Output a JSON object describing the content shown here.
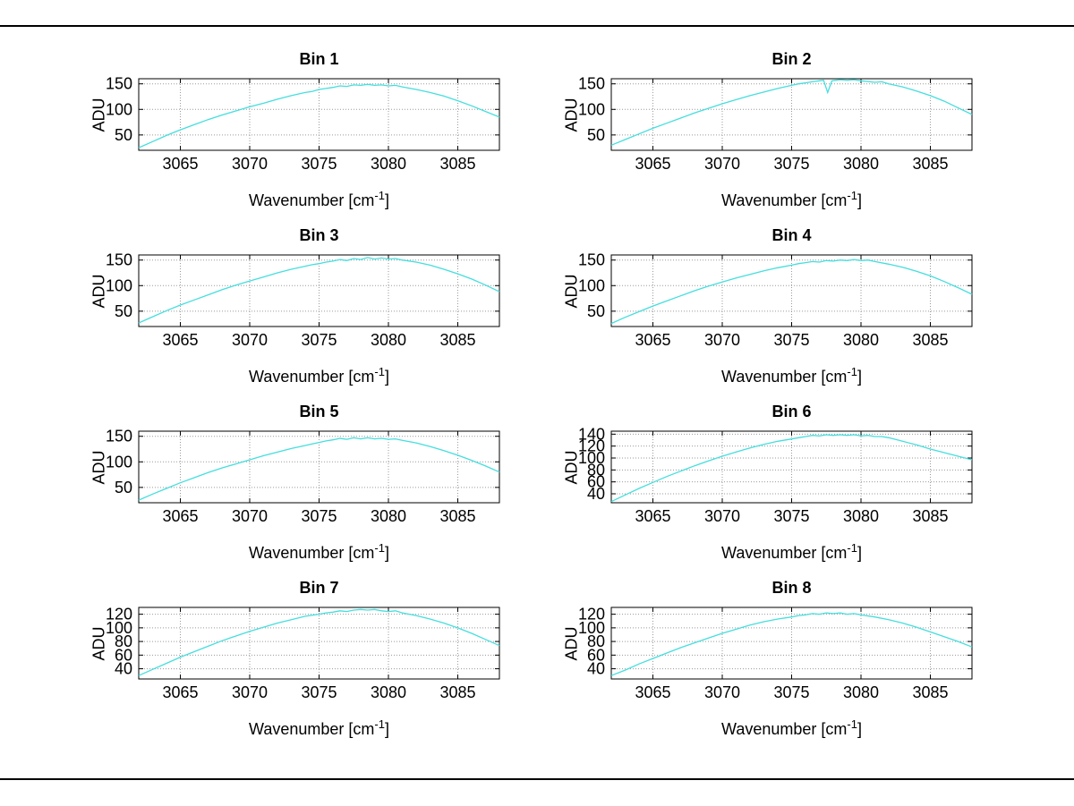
{
  "figure": {
    "background": "#ffffff",
    "border_color": "#000000"
  },
  "axes_labels": {
    "ylabel": "ADU",
    "xlabel_main": "Wavenumber [cm",
    "xlabel_sup": "-1",
    "xlabel_close": "]"
  },
  "chart_data": [
    {
      "type": "line",
      "title": "Bin 1",
      "xlabel": "Wavenumber [cm^-1]",
      "ylabel": "ADU",
      "xlim": [
        3062,
        3088
      ],
      "ylim": [
        20,
        160
      ],
      "xticks": [
        3065,
        3070,
        3075,
        3080,
        3085
      ],
      "yticks": [
        50,
        100,
        150
      ],
      "grid": true,
      "line_color": "#45dede",
      "points": [
        [
          3062,
          25
        ],
        [
          3063,
          37
        ],
        [
          3064,
          49
        ],
        [
          3065,
          60
        ],
        [
          3066,
          70
        ],
        [
          3067,
          80
        ],
        [
          3068,
          89
        ],
        [
          3069,
          97
        ],
        [
          3070,
          105
        ],
        [
          3071,
          112
        ],
        [
          3072,
          120
        ],
        [
          3073,
          127
        ],
        [
          3074,
          133
        ],
        [
          3074.5,
          135
        ],
        [
          3075,
          139
        ],
        [
          3075.5,
          141
        ],
        [
          3076,
          143
        ],
        [
          3076.5,
          146
        ],
        [
          3077,
          145
        ],
        [
          3077.5,
          148
        ],
        [
          3078,
          147
        ],
        [
          3078.5,
          149
        ],
        [
          3079,
          147
        ],
        [
          3079.5,
          148
        ],
        [
          3080,
          146
        ],
        [
          3080.5,
          147
        ],
        [
          3081,
          144
        ],
        [
          3082,
          139
        ],
        [
          3083,
          133
        ],
        [
          3084,
          126
        ],
        [
          3085,
          117
        ],
        [
          3086,
          107
        ],
        [
          3087,
          96
        ],
        [
          3088,
          85
        ]
      ]
    },
    {
      "type": "line",
      "title": "Bin 2",
      "xlabel": "Wavenumber [cm^-1]",
      "ylabel": "ADU",
      "xlim": [
        3062,
        3088
      ],
      "ylim": [
        20,
        160
      ],
      "xticks": [
        3065,
        3070,
        3075,
        3080,
        3085
      ],
      "yticks": [
        50,
        100,
        150
      ],
      "grid": true,
      "line_color": "#45dede",
      "points": [
        [
          3062,
          30
        ],
        [
          3063,
          41
        ],
        [
          3064,
          52
        ],
        [
          3065,
          63
        ],
        [
          3066,
          73
        ],
        [
          3067,
          83
        ],
        [
          3068,
          93
        ],
        [
          3069,
          102
        ],
        [
          3070,
          111
        ],
        [
          3071,
          119
        ],
        [
          3072,
          127
        ],
        [
          3073,
          134
        ],
        [
          3074,
          141
        ],
        [
          3075,
          147
        ],
        [
          3075.5,
          150
        ],
        [
          3076,
          152
        ],
        [
          3076.5,
          154
        ],
        [
          3077,
          156
        ],
        [
          3077.3,
          157
        ],
        [
          3077.6,
          133
        ],
        [
          3077.9,
          156
        ],
        [
          3078.2,
          157
        ],
        [
          3078.5,
          158
        ],
        [
          3079,
          157
        ],
        [
          3079.5,
          158
        ],
        [
          3080,
          156
        ],
        [
          3081,
          153
        ],
        [
          3081.5,
          154
        ],
        [
          3082,
          150
        ],
        [
          3083,
          144
        ],
        [
          3084,
          136
        ],
        [
          3085,
          127
        ],
        [
          3086,
          116
        ],
        [
          3087,
          103
        ],
        [
          3088,
          90
        ]
      ]
    },
    {
      "type": "line",
      "title": "Bin 3",
      "xlabel": "Wavenumber [cm^-1]",
      "ylabel": "ADU",
      "xlim": [
        3062,
        3088
      ],
      "ylim": [
        20,
        160
      ],
      "xticks": [
        3065,
        3070,
        3075,
        3080,
        3085
      ],
      "yticks": [
        50,
        100,
        150
      ],
      "grid": true,
      "line_color": "#45dede",
      "points": [
        [
          3062,
          27
        ],
        [
          3063,
          39
        ],
        [
          3064,
          51
        ],
        [
          3065,
          62
        ],
        [
          3066,
          72
        ],
        [
          3067,
          82
        ],
        [
          3068,
          92
        ],
        [
          3069,
          101
        ],
        [
          3070,
          109
        ],
        [
          3071,
          117
        ],
        [
          3072,
          125
        ],
        [
          3073,
          132
        ],
        [
          3074,
          138
        ],
        [
          3074.5,
          141
        ],
        [
          3075,
          143
        ],
        [
          3075.5,
          146
        ],
        [
          3076,
          148
        ],
        [
          3076.5,
          151
        ],
        [
          3077,
          149
        ],
        [
          3077.5,
          153
        ],
        [
          3078,
          151
        ],
        [
          3078.5,
          155
        ],
        [
          3079,
          152
        ],
        [
          3079.5,
          154
        ],
        [
          3080,
          152
        ],
        [
          3080.5,
          153
        ],
        [
          3081,
          150
        ],
        [
          3082,
          146
        ],
        [
          3083,
          140
        ],
        [
          3084,
          132
        ],
        [
          3085,
          123
        ],
        [
          3086,
          113
        ],
        [
          3087,
          101
        ],
        [
          3088,
          88
        ]
      ]
    },
    {
      "type": "line",
      "title": "Bin 4",
      "xlabel": "Wavenumber [cm^-1]",
      "ylabel": "ADU",
      "xlim": [
        3062,
        3088
      ],
      "ylim": [
        20,
        160
      ],
      "xticks": [
        3065,
        3070,
        3075,
        3080,
        3085
      ],
      "yticks": [
        50,
        100,
        150
      ],
      "grid": true,
      "line_color": "#45dede",
      "points": [
        [
          3062,
          26
        ],
        [
          3063,
          38
        ],
        [
          3064,
          49
        ],
        [
          3065,
          60
        ],
        [
          3066,
          70
        ],
        [
          3067,
          80
        ],
        [
          3068,
          90
        ],
        [
          3069,
          99
        ],
        [
          3070,
          107
        ],
        [
          3071,
          115
        ],
        [
          3072,
          122
        ],
        [
          3073,
          129
        ],
        [
          3074,
          135
        ],
        [
          3075,
          140
        ],
        [
          3075.5,
          143
        ],
        [
          3076,
          145
        ],
        [
          3076.5,
          147
        ],
        [
          3077,
          146
        ],
        [
          3077.5,
          149
        ],
        [
          3078,
          148
        ],
        [
          3078.5,
          150
        ],
        [
          3079,
          149
        ],
        [
          3079.5,
          151
        ],
        [
          3080,
          149
        ],
        [
          3080.5,
          150
        ],
        [
          3081,
          147
        ],
        [
          3082,
          142
        ],
        [
          3083,
          136
        ],
        [
          3084,
          128
        ],
        [
          3085,
          119
        ],
        [
          3086,
          108
        ],
        [
          3087,
          96
        ],
        [
          3088,
          83
        ]
      ]
    },
    {
      "type": "line",
      "title": "Bin 5",
      "xlabel": "Wavenumber [cm^-1]",
      "ylabel": "ADU",
      "xlim": [
        3062,
        3088
      ],
      "ylim": [
        20,
        160
      ],
      "xticks": [
        3065,
        3070,
        3075,
        3080,
        3085
      ],
      "yticks": [
        50,
        100,
        150
      ],
      "grid": true,
      "line_color": "#45dede",
      "points": [
        [
          3062,
          25
        ],
        [
          3063,
          37
        ],
        [
          3064,
          48
        ],
        [
          3065,
          59
        ],
        [
          3066,
          69
        ],
        [
          3067,
          79
        ],
        [
          3068,
          88
        ],
        [
          3069,
          96
        ],
        [
          3070,
          104
        ],
        [
          3071,
          112
        ],
        [
          3072,
          119
        ],
        [
          3073,
          126
        ],
        [
          3074,
          132
        ],
        [
          3074.5,
          135
        ],
        [
          3075,
          138
        ],
        [
          3075.5,
          141
        ],
        [
          3076,
          143
        ],
        [
          3076.5,
          146
        ],
        [
          3077,
          144
        ],
        [
          3077.5,
          147
        ],
        [
          3078,
          145
        ],
        [
          3078.5,
          147
        ],
        [
          3079,
          145
        ],
        [
          3079.5,
          146
        ],
        [
          3080,
          144
        ],
        [
          3080.5,
          145
        ],
        [
          3081,
          142
        ],
        [
          3082,
          137
        ],
        [
          3083,
          130
        ],
        [
          3084,
          122
        ],
        [
          3085,
          113
        ],
        [
          3086,
          103
        ],
        [
          3087,
          92
        ],
        [
          3088,
          80
        ]
      ]
    },
    {
      "type": "line",
      "title": "Bin 6",
      "xlabel": "Wavenumber [cm^-1]",
      "ylabel": "ADU",
      "xlim": [
        3062,
        3088
      ],
      "ylim": [
        25,
        145
      ],
      "xticks": [
        3065,
        3070,
        3075,
        3080,
        3085
      ],
      "yticks": [
        40,
        60,
        80,
        100,
        120,
        140
      ],
      "grid": true,
      "line_color": "#45dede",
      "points": [
        [
          3062,
          27
        ],
        [
          3063,
          38
        ],
        [
          3064,
          49
        ],
        [
          3065,
          59
        ],
        [
          3066,
          69
        ],
        [
          3067,
          78
        ],
        [
          3068,
          87
        ],
        [
          3069,
          95
        ],
        [
          3070,
          103
        ],
        [
          3071,
          110
        ],
        [
          3072,
          117
        ],
        [
          3073,
          123
        ],
        [
          3074,
          128
        ],
        [
          3075,
          132
        ],
        [
          3075.5,
          134
        ],
        [
          3076,
          136
        ],
        [
          3076.5,
          138
        ],
        [
          3077,
          137
        ],
        [
          3077.5,
          139
        ],
        [
          3078,
          138
        ],
        [
          3078.5,
          139
        ],
        [
          3079,
          138
        ],
        [
          3079.5,
          139
        ],
        [
          3080,
          137
        ],
        [
          3080.5,
          138
        ],
        [
          3081,
          136
        ],
        [
          3081.5,
          136
        ],
        [
          3082,
          134
        ],
        [
          3082.5,
          131
        ],
        [
          3083,
          128
        ],
        [
          3084,
          122
        ],
        [
          3085,
          115
        ],
        [
          3086,
          109
        ],
        [
          3087,
          103
        ],
        [
          3088,
          97
        ]
      ]
    },
    {
      "type": "line",
      "title": "Bin 7",
      "xlabel": "Wavenumber [cm^-1]",
      "ylabel": "ADU",
      "xlim": [
        3062,
        3088
      ],
      "ylim": [
        25,
        130
      ],
      "xticks": [
        3065,
        3070,
        3075,
        3080,
        3085
      ],
      "yticks": [
        40,
        60,
        80,
        100,
        120
      ],
      "grid": true,
      "line_color": "#45dede",
      "points": [
        [
          3062,
          30
        ],
        [
          3063,
          39
        ],
        [
          3064,
          48
        ],
        [
          3065,
          57
        ],
        [
          3066,
          65
        ],
        [
          3067,
          73
        ],
        [
          3068,
          81
        ],
        [
          3069,
          88
        ],
        [
          3070,
          95
        ],
        [
          3071,
          101
        ],
        [
          3072,
          107
        ],
        [
          3073,
          112
        ],
        [
          3074,
          117
        ],
        [
          3075,
          120
        ],
        [
          3075.5,
          122
        ],
        [
          3076,
          123
        ],
        [
          3076.5,
          125
        ],
        [
          3077,
          124
        ],
        [
          3077.5,
          126
        ],
        [
          3078,
          127
        ],
        [
          3078.5,
          126
        ],
        [
          3079,
          127
        ],
        [
          3079.5,
          125
        ],
        [
          3080,
          124
        ],
        [
          3080.5,
          125
        ],
        [
          3081,
          122
        ],
        [
          3082,
          118
        ],
        [
          3083,
          113
        ],
        [
          3084,
          107
        ],
        [
          3085,
          100
        ],
        [
          3086,
          92
        ],
        [
          3087,
          83
        ],
        [
          3088,
          74
        ]
      ]
    },
    {
      "type": "line",
      "title": "Bin 8",
      "xlabel": "Wavenumber [cm^-1]",
      "ylabel": "ADU",
      "xlim": [
        3062,
        3088
      ],
      "ylim": [
        25,
        130
      ],
      "xticks": [
        3065,
        3070,
        3075,
        3080,
        3085
      ],
      "yticks": [
        40,
        60,
        80,
        100,
        120
      ],
      "grid": true,
      "line_color": "#45dede",
      "points": [
        [
          3062,
          30
        ],
        [
          3063,
          38
        ],
        [
          3064,
          47
        ],
        [
          3065,
          55
        ],
        [
          3066,
          63
        ],
        [
          3067,
          71
        ],
        [
          3068,
          78
        ],
        [
          3069,
          85
        ],
        [
          3070,
          92
        ],
        [
          3071,
          98
        ],
        [
          3072,
          104
        ],
        [
          3073,
          109
        ],
        [
          3074,
          113
        ],
        [
          3075,
          116
        ],
        [
          3075.5,
          118
        ],
        [
          3076,
          119
        ],
        [
          3076.5,
          121
        ],
        [
          3077,
          120
        ],
        [
          3077.5,
          122
        ],
        [
          3078,
          121
        ],
        [
          3078.5,
          122
        ],
        [
          3079,
          120
        ],
        [
          3079.5,
          121
        ],
        [
          3080,
          119
        ],
        [
          3081,
          116
        ],
        [
          3082,
          112
        ],
        [
          3083,
          107
        ],
        [
          3084,
          101
        ],
        [
          3085,
          94
        ],
        [
          3086,
          87
        ],
        [
          3087,
          80
        ],
        [
          3088,
          72
        ]
      ]
    }
  ]
}
